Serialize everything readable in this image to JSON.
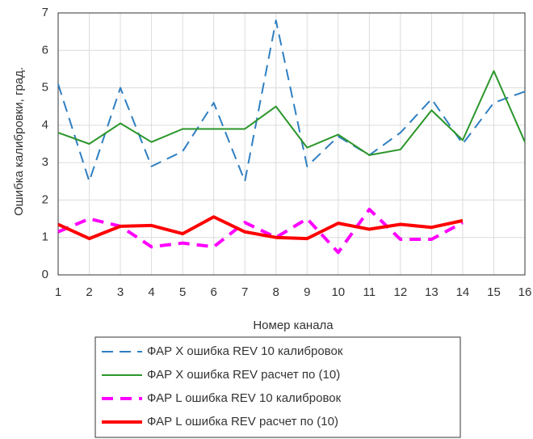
{
  "chart_data": {
    "type": "line",
    "xlabel": "Номер канала",
    "ylabel": "Ошибка калибровки, град.",
    "x": [
      1,
      2,
      3,
      4,
      5,
      6,
      7,
      8,
      9,
      10,
      11,
      12,
      13,
      14,
      15,
      16
    ],
    "xlim": [
      1,
      16
    ],
    "xticks": [
      1,
      2,
      3,
      4,
      5,
      6,
      7,
      8,
      9,
      10,
      11,
      12,
      13,
      14,
      15,
      16
    ],
    "ylim": [
      0,
      7
    ],
    "yticks": [
      0,
      1,
      2,
      3,
      4,
      5,
      6,
      7
    ],
    "grid": true,
    "legend": "below",
    "series": [
      {
        "name": "ФАР X ошибка REV 10 калибровок",
        "color": "#2f7fc1",
        "linestyle": "dashed",
        "linewidth": 2,
        "values": [
          5.1,
          2.5,
          5.0,
          2.9,
          3.3,
          4.6,
          2.5,
          6.8,
          2.9,
          3.7,
          3.2,
          3.8,
          4.7,
          3.5,
          4.6,
          4.9
        ]
      },
      {
        "name": "ФАР X ошибка REV расчет по (10)",
        "color": "#2a962a",
        "linestyle": "solid",
        "linewidth": 2,
        "values": [
          3.8,
          3.5,
          4.05,
          3.55,
          3.9,
          3.9,
          3.9,
          4.5,
          3.4,
          3.75,
          3.2,
          3.35,
          4.4,
          3.6,
          5.45,
          3.55
        ]
      },
      {
        "name": "ФАР L ошибка REV 10 калибровок",
        "color": "#ff00ff",
        "linestyle": "dashed",
        "linewidth": 4,
        "values": [
          1.15,
          1.5,
          1.3,
          0.75,
          0.85,
          0.75,
          1.4,
          1.0,
          1.5,
          0.6,
          1.75,
          0.95,
          0.95,
          1.4,
          null,
          null
        ]
      },
      {
        "name": "ФАР L ошибка REV расчет по (10)",
        "color": "#ff0000",
        "linestyle": "solid",
        "linewidth": 4,
        "values": [
          1.35,
          0.97,
          1.3,
          1.32,
          1.1,
          1.55,
          1.15,
          1.0,
          0.97,
          1.38,
          1.22,
          1.35,
          1.27,
          1.45,
          null,
          null
        ]
      }
    ]
  }
}
